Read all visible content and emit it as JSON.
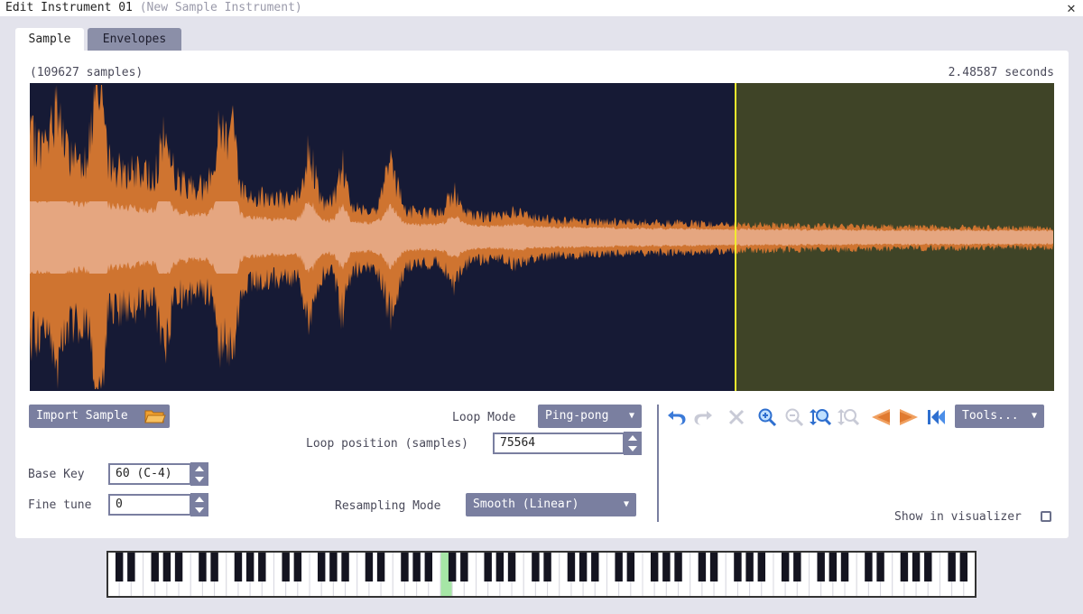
{
  "window": {
    "title": "Edit Instrument 01",
    "subtitle": "(New Sample Instrument)"
  },
  "tabs": [
    {
      "label": "Sample",
      "active": true
    },
    {
      "label": "Envelopes",
      "active": false
    }
  ],
  "sample": {
    "samples_text": "(109627 samples)",
    "duration_text": "2.48587 seconds",
    "sample_count": 109627,
    "loop_start": 75564
  },
  "controls": {
    "import_label": "Import Sample",
    "loop_mode_label": "Loop Mode",
    "loop_mode_value": "Ping-pong",
    "loop_position_label": "Loop position (samples)",
    "loop_position_value": "75564",
    "base_key_label": "Base Key",
    "base_key_value": "60 (C-4)",
    "fine_tune_label": "Fine tune",
    "fine_tune_value": "0",
    "resampling_label": "Resampling Mode",
    "resampling_value": "Smooth (Linear)"
  },
  "toolbar": {
    "icons": [
      "undo-icon",
      "redo-icon",
      "delete-icon",
      "zoom-in-icon",
      "zoom-out-icon",
      "zoom-fit-icon",
      "zoom-reset-icon",
      "fade-in-icon",
      "fade-out-icon",
      "reverse-icon"
    ],
    "tools_label": "Tools..."
  },
  "visualizer": {
    "label": "Show in visualizer",
    "checked": false
  },
  "keyboard": {
    "highlight_key": "C-4"
  },
  "colors": {
    "wave_bg": "#161a35",
    "loop_bg": "#3f4427",
    "wave_outer": "#cf7430",
    "wave_inner": "#e5a680",
    "loop_marker": "#f2ec2e",
    "accent": "#7a7fa0",
    "key_highlight": "#a6e6a6"
  }
}
